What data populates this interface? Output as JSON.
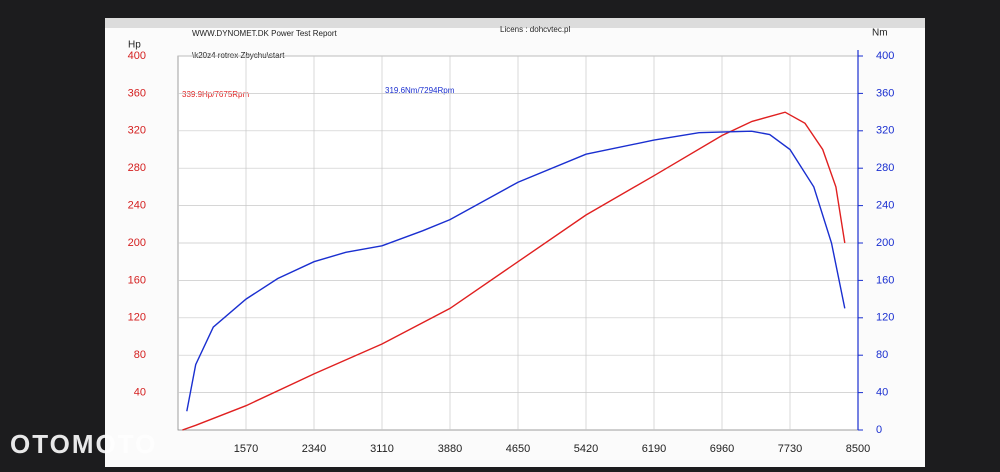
{
  "chart_data": {
    "type": "line",
    "title": "WWW.DYNOMET.DK  Power Test Report",
    "license": "Licens : dohcvtec.pl",
    "subtitle": "\\k20z4 rotrex Zbychu\\start",
    "y_label": "Hp",
    "y2_label": "Nm",
    "annotations": [
      "339.9Hp/7675Rpm",
      "319.6Nm/7294Rpm"
    ],
    "watermark": "OTOMOTO",
    "xlim": [
      800,
      8500
    ],
    "xticks": [
      1570,
      2340,
      3110,
      3880,
      4650,
      5420,
      6190,
      6960,
      7730,
      8500
    ],
    "ylim": [
      0,
      400
    ],
    "yticks": [
      40,
      80,
      120,
      160,
      200,
      240,
      280,
      320,
      360,
      400
    ],
    "y2lim": [
      0,
      400
    ],
    "y2ticks": [
      0,
      40,
      80,
      120,
      160,
      200,
      240,
      280,
      320,
      360,
      400
    ],
    "grid": true,
    "series": [
      {
        "name": "Hp",
        "color": "#e02020",
        "axis": "y",
        "x": [
          850,
          1000,
          1570,
          2340,
          3110,
          3880,
          4650,
          5420,
          6190,
          6960,
          7300,
          7675,
          7900,
          8100,
          8250,
          8350
        ],
        "values": [
          0,
          5,
          26,
          60,
          92,
          130,
          180,
          230,
          272,
          315,
          330,
          339.9,
          328,
          300,
          260,
          200
        ]
      },
      {
        "name": "Nm",
        "color": "#1a2fd0",
        "axis": "y2",
        "x": [
          900,
          1000,
          1200,
          1570,
          1930,
          2340,
          2700,
          3110,
          3570,
          3880,
          4650,
          5420,
          6190,
          6700,
          7294,
          7500,
          7730,
          8000,
          8200,
          8350
        ],
        "values": [
          20,
          70,
          110,
          140,
          162,
          180,
          190,
          197,
          213,
          225,
          265,
          295,
          310,
          318,
          319.6,
          316,
          300,
          260,
          200,
          130
        ]
      }
    ]
  }
}
